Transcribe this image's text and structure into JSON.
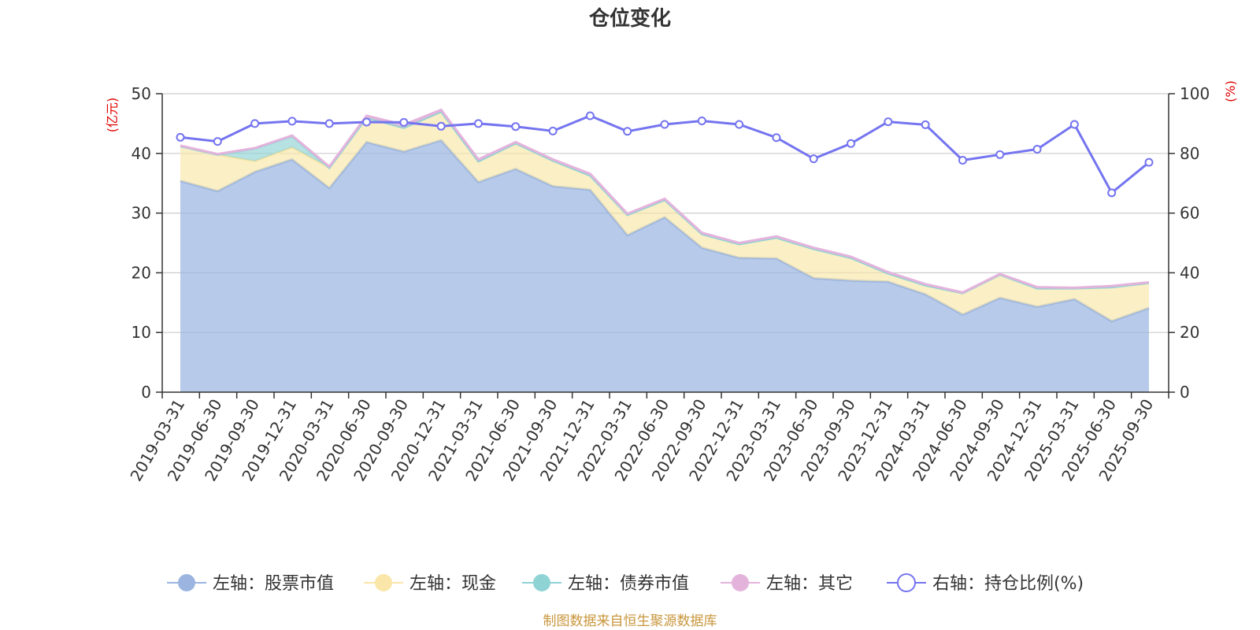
{
  "chart_data": {
    "type": "area",
    "title": "仓位变化",
    "left_unit": "(亿元)",
    "right_unit": "(%)",
    "left_ylim": [
      0,
      50
    ],
    "left_ticks": [
      "0",
      "10",
      "20",
      "30",
      "40",
      "50"
    ],
    "right_ylim": [
      0,
      100
    ],
    "right_ticks": [
      "0",
      "20",
      "40",
      "60",
      "80",
      "100"
    ],
    "categories": [
      "2019-03-31",
      "2019-06-30",
      "2019-09-30",
      "2019-12-31",
      "2020-03-31",
      "2020-06-30",
      "2020-09-30",
      "2020-12-31",
      "2021-03-31",
      "2021-06-30",
      "2021-09-30",
      "2021-12-31",
      "2022-03-31",
      "2022-06-30",
      "2022-09-30",
      "2022-12-31",
      "2023-03-31",
      "2023-06-30",
      "2023-09-30",
      "2023-12-31",
      "2024-03-31",
      "2024-06-30",
      "2024-09-30",
      "2024-12-31",
      "2025-03-31",
      "2025-06-30",
      "2025-09-30"
    ],
    "series": [
      {
        "name": "左轴：股票市值",
        "axis": "left",
        "color": "#9bb5e0",
        "values": [
          35.4,
          33.7,
          36.9,
          39.0,
          34.2,
          41.9,
          40.3,
          42.2,
          35.2,
          37.4,
          34.5,
          33.9,
          26.3,
          29.3,
          24.2,
          22.5,
          22.4,
          19.1,
          18.7,
          18.5,
          16.4,
          13.0,
          15.8,
          14.3,
          15.6,
          11.9,
          14.1
        ]
      },
      {
        "name": "左轴：现金",
        "axis": "left",
        "color": "#f9e6a8",
        "values": [
          5.8,
          6.1,
          1.8,
          2.0,
          3.4,
          4.1,
          4.0,
          4.8,
          3.5,
          4.3,
          4.3,
          2.4,
          3.4,
          2.9,
          2.3,
          2.3,
          3.5,
          4.9,
          3.8,
          1.4,
          1.5,
          3.6,
          3.9,
          3.1,
          1.8,
          5.7,
          4.2
        ]
      },
      {
        "name": "左轴：债券市值",
        "axis": "left",
        "color": "#8fd3d5",
        "values": [
          0,
          0,
          2.1,
          1.9,
          0,
          0,
          0,
          0,
          0,
          0,
          0,
          0,
          0,
          0,
          0,
          0,
          0,
          0,
          0,
          0,
          0,
          0,
          0,
          0,
          0,
          0,
          0
        ]
      },
      {
        "name": "左轴：其它",
        "axis": "left",
        "color": "#e4b3dc",
        "values": [
          0.1,
          0.1,
          0.1,
          0.1,
          0.2,
          0.3,
          0.5,
          0.3,
          0.3,
          0.2,
          0.2,
          0.3,
          0.2,
          0.2,
          0.2,
          0.2,
          0.2,
          0.2,
          0.2,
          0.2,
          0.2,
          0.1,
          0.1,
          0.2,
          0.1,
          0.2,
          0.1
        ]
      },
      {
        "name": "右轴：持仓比例(%)",
        "axis": "right",
        "color": "#7474f0",
        "values": [
          85.4,
          84.0,
          90.0,
          90.8,
          90.0,
          90.5,
          90.4,
          89.1,
          90.0,
          89.0,
          87.5,
          92.6,
          87.4,
          89.7,
          90.9,
          89.7,
          85.3,
          78.2,
          83.3,
          90.6,
          89.6,
          77.7,
          79.6,
          81.4,
          89.7,
          66.8,
          77.0
        ]
      }
    ]
  },
  "source_text": "制图数据来自恒生聚源数据库"
}
